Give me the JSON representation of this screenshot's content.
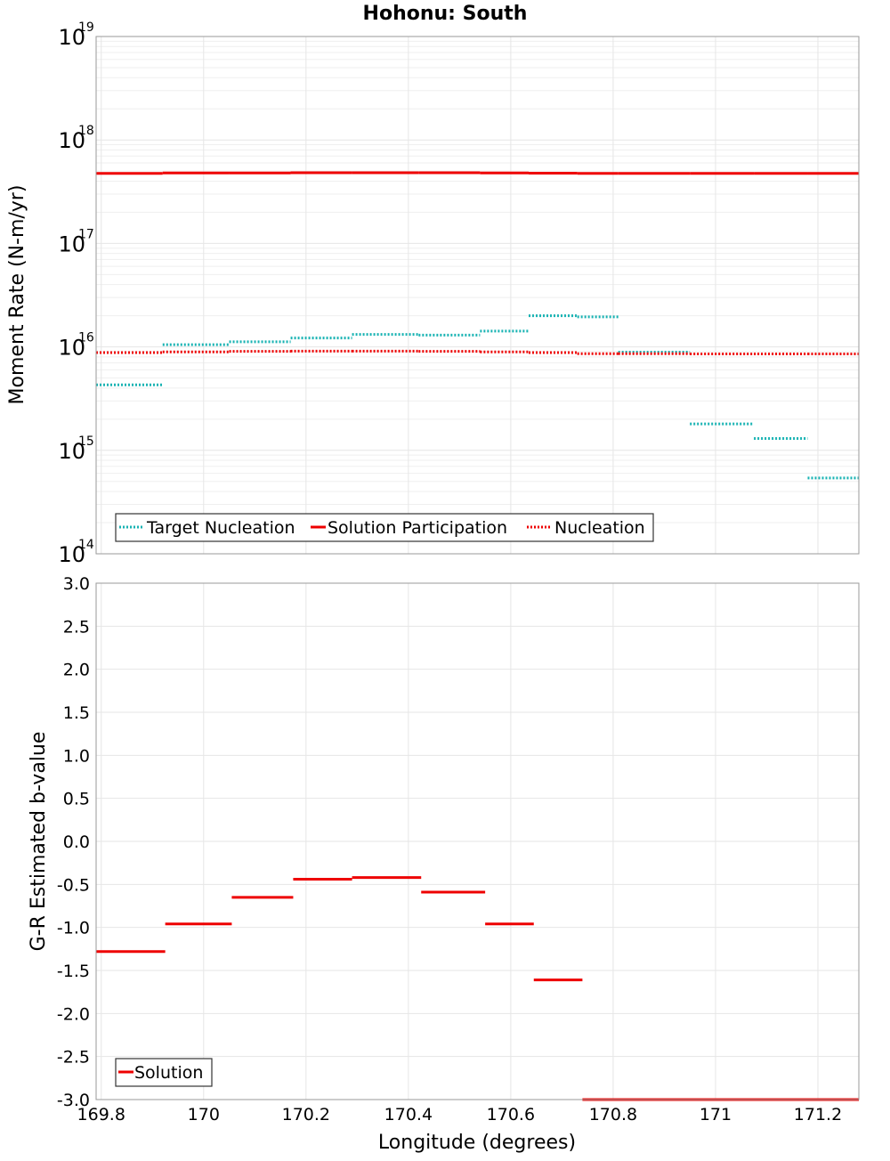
{
  "chart_data": [
    {
      "type": "line",
      "title": "Hohonu: South",
      "xlabel": "Longitude (degrees)",
      "ylabel": "Moment Rate (N-m/yr)",
      "yscale": "log",
      "xlim": [
        169.79,
        171.28
      ],
      "ylim": [
        100000000000000.0,
        1e+19
      ],
      "ytick_exponents": [
        "14",
        "15",
        "16",
        "17",
        "18",
        "19"
      ],
      "grid": true,
      "legend_position": "bottom-left",
      "series": [
        {
          "name": "Target Nucleation",
          "color": "#19b3b3",
          "style": "dotted",
          "segments": [
            {
              "x0": 169.79,
              "x1": 169.92,
              "y": 4300000000000000.0
            },
            {
              "x0": 169.92,
              "x1": 170.05,
              "y": 1.05e+16
            },
            {
              "x0": 170.05,
              "x1": 170.17,
              "y": 1.12e+16
            },
            {
              "x0": 170.17,
              "x1": 170.29,
              "y": 1.22e+16
            },
            {
              "x0": 170.29,
              "x1": 170.42,
              "y": 1.32e+16
            },
            {
              "x0": 170.42,
              "x1": 170.54,
              "y": 1.3e+16
            },
            {
              "x0": 170.54,
              "x1": 170.635,
              "y": 1.42e+16
            },
            {
              "x0": 170.635,
              "x1": 170.73,
              "y": 2e+16
            },
            {
              "x0": 170.73,
              "x1": 170.81,
              "y": 1.95e+16
            },
            {
              "x0": 170.81,
              "x1": 170.95,
              "y": 8900000000000000.0
            },
            {
              "x0": 170.95,
              "x1": 171.075,
              "y": 1800000000000000.0
            },
            {
              "x0": 171.075,
              "x1": 171.18,
              "y": 1300000000000000.0
            },
            {
              "x0": 171.18,
              "x1": 171.28,
              "y": 540000000000000.0
            }
          ]
        },
        {
          "name": "Solution Participation",
          "color": "#ee0000",
          "style": "solid",
          "segments": [
            {
              "x0": 169.79,
              "x1": 169.92,
              "y": 4.75e+17
            },
            {
              "x0": 169.92,
              "x1": 170.05,
              "y": 4.8e+17
            },
            {
              "x0": 170.05,
              "x1": 170.17,
              "y": 4.8e+17
            },
            {
              "x0": 170.17,
              "x1": 170.29,
              "y": 4.82e+17
            },
            {
              "x0": 170.29,
              "x1": 170.42,
              "y": 4.82e+17
            },
            {
              "x0": 170.42,
              "x1": 170.54,
              "y": 4.82e+17
            },
            {
              "x0": 170.54,
              "x1": 170.635,
              "y": 4.8e+17
            },
            {
              "x0": 170.635,
              "x1": 170.73,
              "y": 4.78e+17
            },
            {
              "x0": 170.73,
              "x1": 170.81,
              "y": 4.75e+17
            },
            {
              "x0": 170.81,
              "x1": 170.95,
              "y": 4.75e+17
            },
            {
              "x0": 170.95,
              "x1": 171.075,
              "y": 4.75e+17
            },
            {
              "x0": 171.075,
              "x1": 171.18,
              "y": 4.75e+17
            },
            {
              "x0": 171.18,
              "x1": 171.28,
              "y": 4.75e+17
            }
          ]
        },
        {
          "name": "Nucleation",
          "color": "#ee0000",
          "style": "dotted",
          "segments": [
            {
              "x0": 169.79,
              "x1": 169.92,
              "y": 8800000000000000.0
            },
            {
              "x0": 169.92,
              "x1": 170.05,
              "y": 8950000000000000.0
            },
            {
              "x0": 170.05,
              "x1": 170.17,
              "y": 9050000000000000.0
            },
            {
              "x0": 170.17,
              "x1": 170.29,
              "y": 9100000000000000.0
            },
            {
              "x0": 170.29,
              "x1": 170.42,
              "y": 9100000000000000.0
            },
            {
              "x0": 170.42,
              "x1": 170.54,
              "y": 9050000000000000.0
            },
            {
              "x0": 170.54,
              "x1": 170.635,
              "y": 8950000000000000.0
            },
            {
              "x0": 170.635,
              "x1": 170.73,
              "y": 8800000000000000.0
            },
            {
              "x0": 170.73,
              "x1": 170.81,
              "y": 8600000000000000.0
            },
            {
              "x0": 170.81,
              "x1": 170.95,
              "y": 8600000000000000.0
            },
            {
              "x0": 170.95,
              "x1": 171.075,
              "y": 8550000000000000.0
            },
            {
              "x0": 171.075,
              "x1": 171.18,
              "y": 8550000000000000.0
            },
            {
              "x0": 171.18,
              "x1": 171.28,
              "y": 8550000000000000.0
            }
          ]
        }
      ]
    },
    {
      "type": "line",
      "xlabel": "Longitude (degrees)",
      "ylabel": "G-R Estimated b-value",
      "xlim": [
        169.79,
        171.28
      ],
      "ylim": [
        -3.0,
        3.0
      ],
      "xticks": [
        169.8,
        170,
        170.2,
        170.4,
        170.6,
        170.8,
        171,
        171.2
      ],
      "xtick_labels": [
        "169.8",
        "170",
        "170.2",
        "170.4",
        "170.6",
        "170.8",
        "171",
        "171.2"
      ],
      "yticks": [
        -3.0,
        -2.5,
        -2.0,
        -1.5,
        -1.0,
        -0.5,
        0.0,
        0.5,
        1.0,
        1.5,
        2.0,
        2.5,
        3.0
      ],
      "ytick_labels": [
        "-3.0",
        "-2.5",
        "-2.0",
        "-1.5",
        "-1.0",
        "-0.5",
        "0.0",
        "0.5",
        "1.0",
        "1.5",
        "2.0",
        "2.5",
        "3.0"
      ],
      "grid": true,
      "legend_position": "bottom-left",
      "series": [
        {
          "name": "Solution",
          "color": "#ee0000",
          "style": "solid",
          "segments": [
            {
              "x0": 169.79,
              "x1": 169.925,
              "y": -1.28
            },
            {
              "x0": 169.925,
              "x1": 170.055,
              "y": -0.96
            },
            {
              "x0": 170.055,
              "x1": 170.175,
              "y": -0.65
            },
            {
              "x0": 170.175,
              "x1": 170.29,
              "y": -0.44
            },
            {
              "x0": 170.29,
              "x1": 170.425,
              "y": -0.42
            },
            {
              "x0": 170.425,
              "x1": 170.55,
              "y": -0.59
            },
            {
              "x0": 170.55,
              "x1": 170.645,
              "y": -0.96
            },
            {
              "x0": 170.645,
              "x1": 170.74,
              "y": -1.61
            },
            {
              "x0": 170.74,
              "x1": 171.28,
              "y": -3.0
            }
          ]
        }
      ]
    }
  ]
}
